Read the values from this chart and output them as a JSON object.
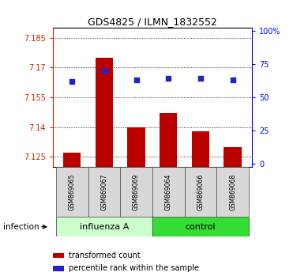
{
  "title": "GDS4825 / ILMN_1832552",
  "samples": [
    "GSM869065",
    "GSM869067",
    "GSM869069",
    "GSM869064",
    "GSM869066",
    "GSM869068"
  ],
  "bar_values": [
    7.127,
    7.175,
    7.14,
    7.147,
    7.138,
    7.13
  ],
  "dot_values": [
    62,
    70,
    63,
    64,
    64,
    63
  ],
  "y_min": 7.12,
  "y_max": 7.19,
  "y_ticks": [
    7.125,
    7.14,
    7.155,
    7.17,
    7.185
  ],
  "y_tick_labels": [
    "7.125",
    "7.14",
    "7.155",
    "7.17",
    "7.185"
  ],
  "y2_ticks": [
    0,
    25,
    50,
    75,
    100
  ],
  "y2_tick_labels": [
    "0",
    "25",
    "50",
    "75",
    "100%"
  ],
  "bar_color": "#bb0000",
  "dot_color": "#2222cc",
  "bar_bottom": 7.12,
  "influenza_color": "#ccffcc",
  "control_color": "#44ee44",
  "group_spans": [
    [
      0,
      3,
      "influenza A",
      "#ccffcc"
    ],
    [
      3,
      6,
      "control",
      "#33dd33"
    ]
  ],
  "xlabel_label": "infection",
  "legend_items": [
    "transformed count",
    "percentile rank within the sample"
  ],
  "legend_colors": [
    "#bb0000",
    "#2222cc"
  ],
  "title_fontsize": 9,
  "tick_fontsize": 7,
  "sample_fontsize": 5.5,
  "group_fontsize": 8
}
